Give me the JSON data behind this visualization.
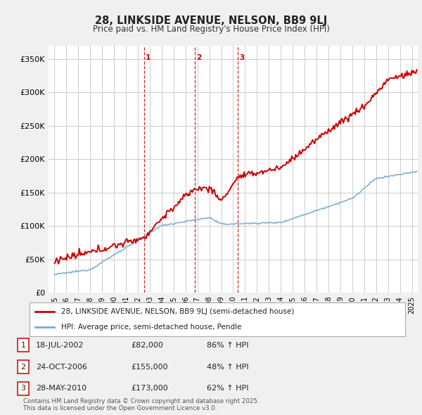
{
  "title": "28, LINKSIDE AVENUE, NELSON, BB9 9LJ",
  "subtitle": "Price paid vs. HM Land Registry's House Price Index (HPI)",
  "red_label": "28, LINKSIDE AVENUE, NELSON, BB9 9LJ (semi-detached house)",
  "blue_label": "HPI: Average price, semi-detached house, Pendle",
  "transactions": [
    {
      "num": 1,
      "date": "18-JUL-2002",
      "price": 82000,
      "pct": "86%",
      "dir": "↑"
    },
    {
      "num": 2,
      "date": "24-OCT-2006",
      "price": 155000,
      "pct": "48%",
      "dir": "↑"
    },
    {
      "num": 3,
      "date": "28-MAY-2010",
      "price": 173000,
      "pct": "62%",
      "dir": "↑"
    }
  ],
  "footer": "Contains HM Land Registry data © Crown copyright and database right 2025.\nThis data is licensed under the Open Government Licence v3.0.",
  "vline_dates": [
    2002.54,
    2006.81,
    2010.41
  ],
  "vline_labels": [
    "1",
    "2",
    "3"
  ],
  "ylim": [
    0,
    370000
  ],
  "yticks": [
    0,
    50000,
    100000,
    150000,
    200000,
    250000,
    300000,
    350000
  ],
  "ytick_labels": [
    "£0",
    "£50K",
    "£100K",
    "£150K",
    "£200K",
    "£250K",
    "£300K",
    "£350K"
  ],
  "xlim": [
    1994.5,
    2025.5
  ],
  "red_color": "#cc0000",
  "blue_color": "#7aaace",
  "vline_color": "#cc0000",
  "grid_color": "#cccccc",
  "bg_color": "#f0f0f0",
  "plot_bg": "#ffffff",
  "legend_border_color": "#aaaaaa",
  "text_color": "#222222",
  "footer_color": "#555555"
}
